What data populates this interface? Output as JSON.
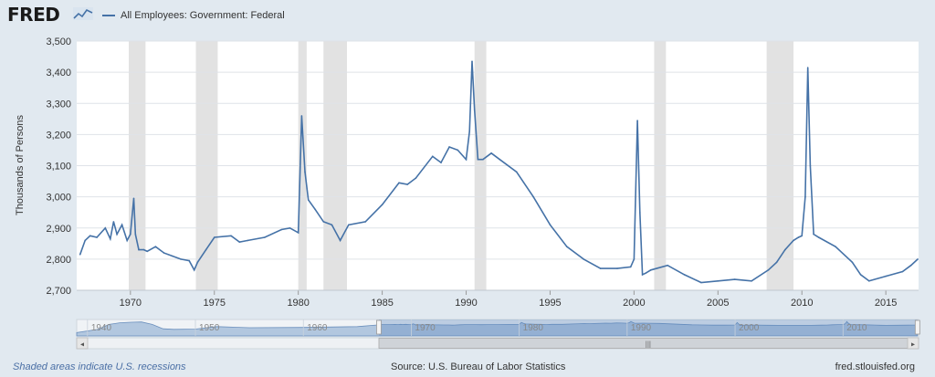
{
  "header": {
    "logo_text": "FRED",
    "logo_icon": "fred-chart-icon",
    "legend_label": "All Employees: Government: Federal"
  },
  "footer": {
    "recession_note": "Shaded areas indicate U.S. recessions",
    "source": "Source: U.S. Bureau of Labor Statistics",
    "site": "fred.stlouisfed.org"
  },
  "colors": {
    "series": "#4572a7",
    "recession": "#e2e2e2",
    "navigator_fill": "#7fa2cc",
    "background": "#e1e9f0"
  },
  "chart_data": {
    "type": "line",
    "title": "",
    "xlabel": "",
    "ylabel": "Thousands of Persons",
    "xlim": [
      1966.8,
      2016.95
    ],
    "ylim": [
      2700,
      3500
    ],
    "yticks": [
      2700,
      2800,
      2900,
      3000,
      3100,
      3200,
      3300,
      3400,
      3500
    ],
    "xticks": [
      1970,
      1975,
      1980,
      1985,
      1990,
      1995,
      2000,
      2005,
      2010,
      2015
    ],
    "grid": true,
    "legend": "top-left",
    "recessions": [
      [
        1969.9,
        1970.9
      ],
      [
        1973.9,
        1975.2
      ],
      [
        1980.0,
        1980.5
      ],
      [
        1981.5,
        1982.9
      ],
      [
        1990.5,
        1991.2
      ],
      [
        2001.2,
        2001.9
      ],
      [
        2007.9,
        2009.5
      ]
    ],
    "series": [
      {
        "name": "All Employees: Government: Federal",
        "x": [
          1967.0,
          1967.3,
          1967.6,
          1968.0,
          1968.5,
          1968.8,
          1969.0,
          1969.2,
          1969.5,
          1969.8,
          1970.0,
          1970.2,
          1970.3,
          1970.5,
          1970.8,
          1971.0,
          1971.5,
          1972.0,
          1972.5,
          1973.0,
          1973.5,
          1973.8,
          1974.0,
          1974.5,
          1975.0,
          1976.0,
          1976.5,
          1977.0,
          1978.0,
          1979.0,
          1979.5,
          1980.0,
          1980.2,
          1980.4,
          1980.6,
          1981.0,
          1981.5,
          1982.0,
          1982.5,
          1983.0,
          1984.0,
          1985.0,
          1986.0,
          1986.5,
          1987.0,
          1988.0,
          1988.5,
          1989.0,
          1989.5,
          1990.0,
          1990.2,
          1990.35,
          1990.5,
          1990.7,
          1991.0,
          1991.5,
          1992.0,
          1993.0,
          1994.0,
          1995.0,
          1996.0,
          1997.0,
          1998.0,
          1999.0,
          1999.8,
          2000.0,
          2000.2,
          2000.35,
          2000.5,
          2000.7,
          2001.0,
          2002.0,
          2003.0,
          2004.0,
          2005.0,
          2006.0,
          2007.0,
          2008.0,
          2008.5,
          2009.0,
          2009.5,
          2009.8,
          2010.0,
          2010.2,
          2010.35,
          2010.5,
          2010.7,
          2011.0,
          2012.0,
          2013.0,
          2013.5,
          2014.0,
          2015.0,
          2016.0,
          2016.5,
          2016.9
        ],
        "values": [
          2815,
          2860,
          2875,
          2870,
          2900,
          2865,
          2920,
          2880,
          2910,
          2860,
          2880,
          2995,
          2880,
          2830,
          2830,
          2825,
          2840,
          2820,
          2810,
          2800,
          2795,
          2765,
          2790,
          2830,
          2870,
          2875,
          2855,
          2860,
          2870,
          2895,
          2900,
          2885,
          3260,
          3080,
          2990,
          2960,
          2920,
          2910,
          2860,
          2910,
          2920,
          2975,
          3045,
          3040,
          3060,
          3130,
          3110,
          3160,
          3150,
          3120,
          3210,
          3435,
          3280,
          3120,
          3120,
          3140,
          3120,
          3080,
          3000,
          2910,
          2840,
          2800,
          2770,
          2770,
          2775,
          2800,
          3245,
          2950,
          2750,
          2755,
          2765,
          2780,
          2750,
          2725,
          2730,
          2735,
          2730,
          2765,
          2790,
          2830,
          2860,
          2870,
          2875,
          3000,
          3415,
          3100,
          2880,
          2870,
          2840,
          2790,
          2750,
          2730,
          2745,
          2760,
          2780,
          2800
        ]
      }
    ],
    "navigator": {
      "xticks": [
        1940,
        1950,
        1960,
        1970,
        1980,
        1990,
        2000,
        2010
      ],
      "selected_range": [
        1967,
        2016.9
      ]
    }
  }
}
